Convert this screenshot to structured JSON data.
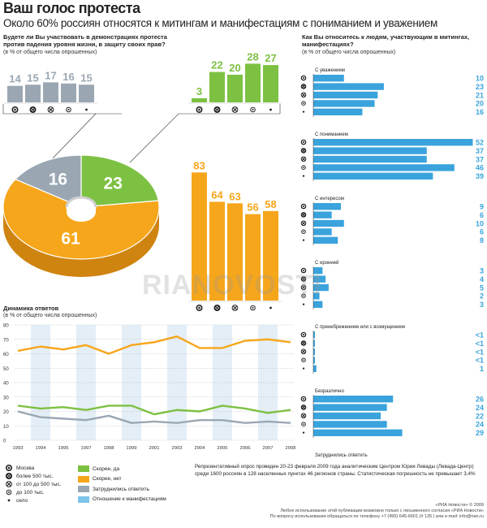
{
  "header": {
    "title": "Ваш голос протеста",
    "subtitle": "Около 60% россиян относятся к митингам и манифестациям с пониманием и уважением"
  },
  "colors": {
    "gray": "#9aa7b3",
    "green": "#7dc142",
    "orange": "#f6a61b",
    "blue": "#3aa3dc",
    "band": "#e4eef7"
  },
  "unit_note": "(в % от общего числа опрошенных)",
  "chart_data": [
    {
      "id": "participation-pie",
      "type": "pie",
      "question": "Будете ли Вы участвовать в демонстрациях протеста против падения уровня жизни, в защиту своих прав?",
      "unit": "(в % от общего числа опрошенных)",
      "slices": [
        {
          "name": "Скорее, да",
          "value": 23,
          "color": "#7dc142"
        },
        {
          "name": "Скорее, нет",
          "value": 61,
          "color": "#f6a61b"
        },
        {
          "name": "Затруднились ответить",
          "value": 16,
          "color": "#9aa7b3"
        }
      ]
    },
    {
      "id": "gray-bars",
      "type": "bar",
      "categories": [
        "Москва",
        "более 500 тыс.",
        "от 100 до 500 тыс.",
        "до 100 тыс.",
        "село"
      ],
      "values": [
        14,
        15,
        17,
        16,
        15
      ],
      "color": "#9aa7b3"
    },
    {
      "id": "green-bars",
      "type": "bar",
      "categories": [
        "Москва",
        "более 500 тыс.",
        "от 100 до 500 тыс.",
        "до 100 тыс.",
        "село"
      ],
      "values": [
        3,
        22,
        20,
        28,
        27
      ],
      "color": "#7dc142"
    },
    {
      "id": "orange-bars",
      "type": "bar",
      "categories": [
        "Москва",
        "более 500 тыс.",
        "от 100 до 500 тыс.",
        "до 100 тыс.",
        "село"
      ],
      "values": [
        83,
        64,
        63,
        56,
        58
      ],
      "color": "#f6a61b"
    },
    {
      "id": "dynamics",
      "type": "line",
      "title": "Динамика ответов",
      "unit": "(в % от общего числа опрошенных)",
      "x": [
        "1993",
        "1994",
        "1995",
        "1997",
        "1998",
        "1999",
        "2001",
        "2003",
        "2004",
        "2005",
        "2006",
        "2007",
        "2008"
      ],
      "ylim": [
        0,
        80
      ],
      "yticks": [
        "0",
        "10",
        "20",
        "30",
        "40",
        "50",
        "60",
        "70",
        "80"
      ],
      "series": [
        {
          "name": "Скорее, нет",
          "color": "#f6a61b",
          "values": [
            62,
            65,
            63,
            66,
            60,
            66,
            68,
            72,
            64,
            64,
            69,
            70,
            68
          ]
        },
        {
          "name": "Скорее, да",
          "color": "#7dc142",
          "values": [
            24,
            22,
            23,
            21,
            24,
            24,
            18,
            21,
            20,
            24,
            22,
            19,
            21
          ]
        },
        {
          "name": "Затруднились ответить",
          "color": "#9aa7b3",
          "values": [
            20,
            16,
            15,
            14,
            17,
            12,
            13,
            12,
            14,
            14,
            12,
            13,
            12
          ]
        }
      ]
    },
    {
      "id": "attitude",
      "type": "bar",
      "question": "Как Вы относитесь к людям, участвующим в митингах, манифестациях?",
      "unit": "(в % от общего числа опрошенных)",
      "color": "#3aa3dc",
      "xlim": [
        0,
        52
      ],
      "groups": [
        {
          "label": "С уважением",
          "values": [
            "10",
            "23",
            "21",
            "20",
            "16"
          ]
        },
        {
          "label": "С пониманием",
          "values": [
            "52",
            "37",
            "37",
            "46",
            "39"
          ]
        },
        {
          "label": "С интересом",
          "values": [
            "9",
            "6",
            "10",
            "6",
            "8"
          ]
        },
        {
          "label": "С иронией",
          "values": [
            "3",
            "4",
            "5",
            "2",
            "3"
          ]
        },
        {
          "label": "С пренебрежением или с возмущением",
          "values": [
            "<1",
            "<1",
            "<1",
            "<1",
            "1"
          ]
        },
        {
          "label": "Безразлично",
          "values": [
            "26",
            "24",
            "22",
            "24",
            "29"
          ]
        },
        {
          "label": "Затруднились ответить",
          "values": [
            "1",
            "4",
            "5",
            "2",
            "4"
          ]
        }
      ]
    }
  ],
  "legend": {
    "settlements": [
      {
        "icon": "Москва-icon",
        "label": "Москва"
      },
      {
        "icon": "более 500 тыс.-icon",
        "label": "более 500 тыс."
      },
      {
        "icon": "от 100 до 500 тыс.-icon",
        "label": "от 100 до 500 тыс."
      },
      {
        "icon": "до 100 тыс.-icon",
        "label": "до 100 тыс."
      },
      {
        "icon": "село-icon",
        "label": "село"
      }
    ],
    "answers": [
      {
        "label": "Скорее, да",
        "color": "#7dc142"
      },
      {
        "label": "Скорее, нет",
        "color": "#f6a61b"
      },
      {
        "label": "Затруднились ответить",
        "color": "#9aa7b3"
      },
      {
        "label": "Отношение к манифестациям",
        "color": "#7fc4ea"
      }
    ]
  },
  "survey_note": "Репрезентативный опрос проведен 20-23 февраля 2009 года аналитическим Центром Юрия Левады (Левада-Центр) среди 1600 россиян в 128 населенных пунктах 46 регионов страны. Статистическая погрешность не превышает 3,4%",
  "watermark": "RIANOVOSTI",
  "footer": {
    "credit": "«РИА Новости» © 2009",
    "line1": "Любое использование этой публикации возможно только с письменного согласия «РИА Новости»",
    "line2": "По вопросу использования обращаться по телефону +7 (495) 645-6601 (# 135 ) или e-mail: info@rian.ru"
  }
}
